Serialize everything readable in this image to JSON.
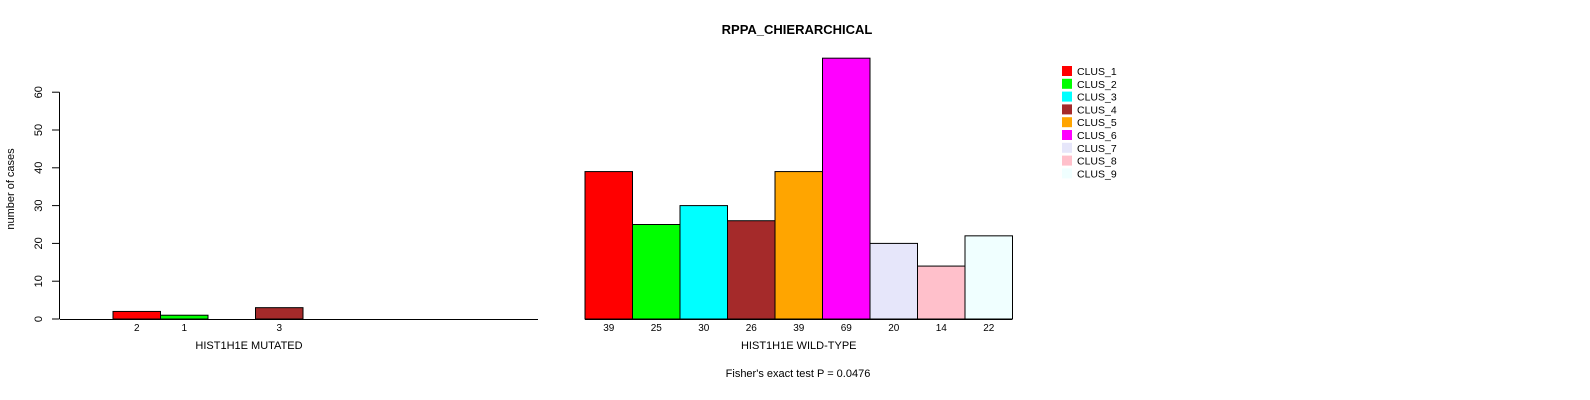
{
  "chart_data": {
    "type": "bar",
    "title": "RPPA_CHIERARCHICAL",
    "ylabel": "number of cases",
    "ylim": [
      0,
      60
    ],
    "yticks": [
      0,
      10,
      20,
      30,
      40,
      50,
      60
    ],
    "grid": false,
    "legend": "top-right",
    "footnote": "Fisher's exact test P = 0.0476",
    "series": [
      {
        "name": "CLUS_1",
        "color": "#FF0000",
        "mutated": 2,
        "wild_type": 39
      },
      {
        "name": "CLUS_2",
        "color": "#00FF00",
        "mutated": 1,
        "wild_type": 25
      },
      {
        "name": "CLUS_3",
        "color": "#00FFFF",
        "mutated": 0,
        "wild_type": 30
      },
      {
        "name": "CLUS_4",
        "color": "#A52A2A",
        "mutated": 3,
        "wild_type": 26
      },
      {
        "name": "CLUS_5",
        "color": "#FFA500",
        "mutated": 0,
        "wild_type": 39
      },
      {
        "name": "CLUS_6",
        "color": "#FF00FF",
        "mutated": 0,
        "wild_type": 69
      },
      {
        "name": "CLUS_7",
        "color": "#E6E6FA",
        "mutated": 0,
        "wild_type": 20
      },
      {
        "name": "CLUS_8",
        "color": "#FFC0CB",
        "mutated": 0,
        "wild_type": 14
      },
      {
        "name": "CLUS_9",
        "color": "#F0FFFF",
        "mutated": 0,
        "wild_type": 22
      }
    ],
    "groups": [
      {
        "label": "HIST1H1E MUTATED",
        "key": "mutated",
        "count_labels": [
          "2",
          "1",
          "",
          "3",
          "",
          "",
          "",
          "",
          ""
        ]
      },
      {
        "label": "HIST1H1E WILD-TYPE",
        "key": "wild_type",
        "count_labels": [
          "39",
          "25",
          "30",
          "26",
          "39",
          "69",
          "20",
          "14",
          "22"
        ]
      }
    ]
  }
}
